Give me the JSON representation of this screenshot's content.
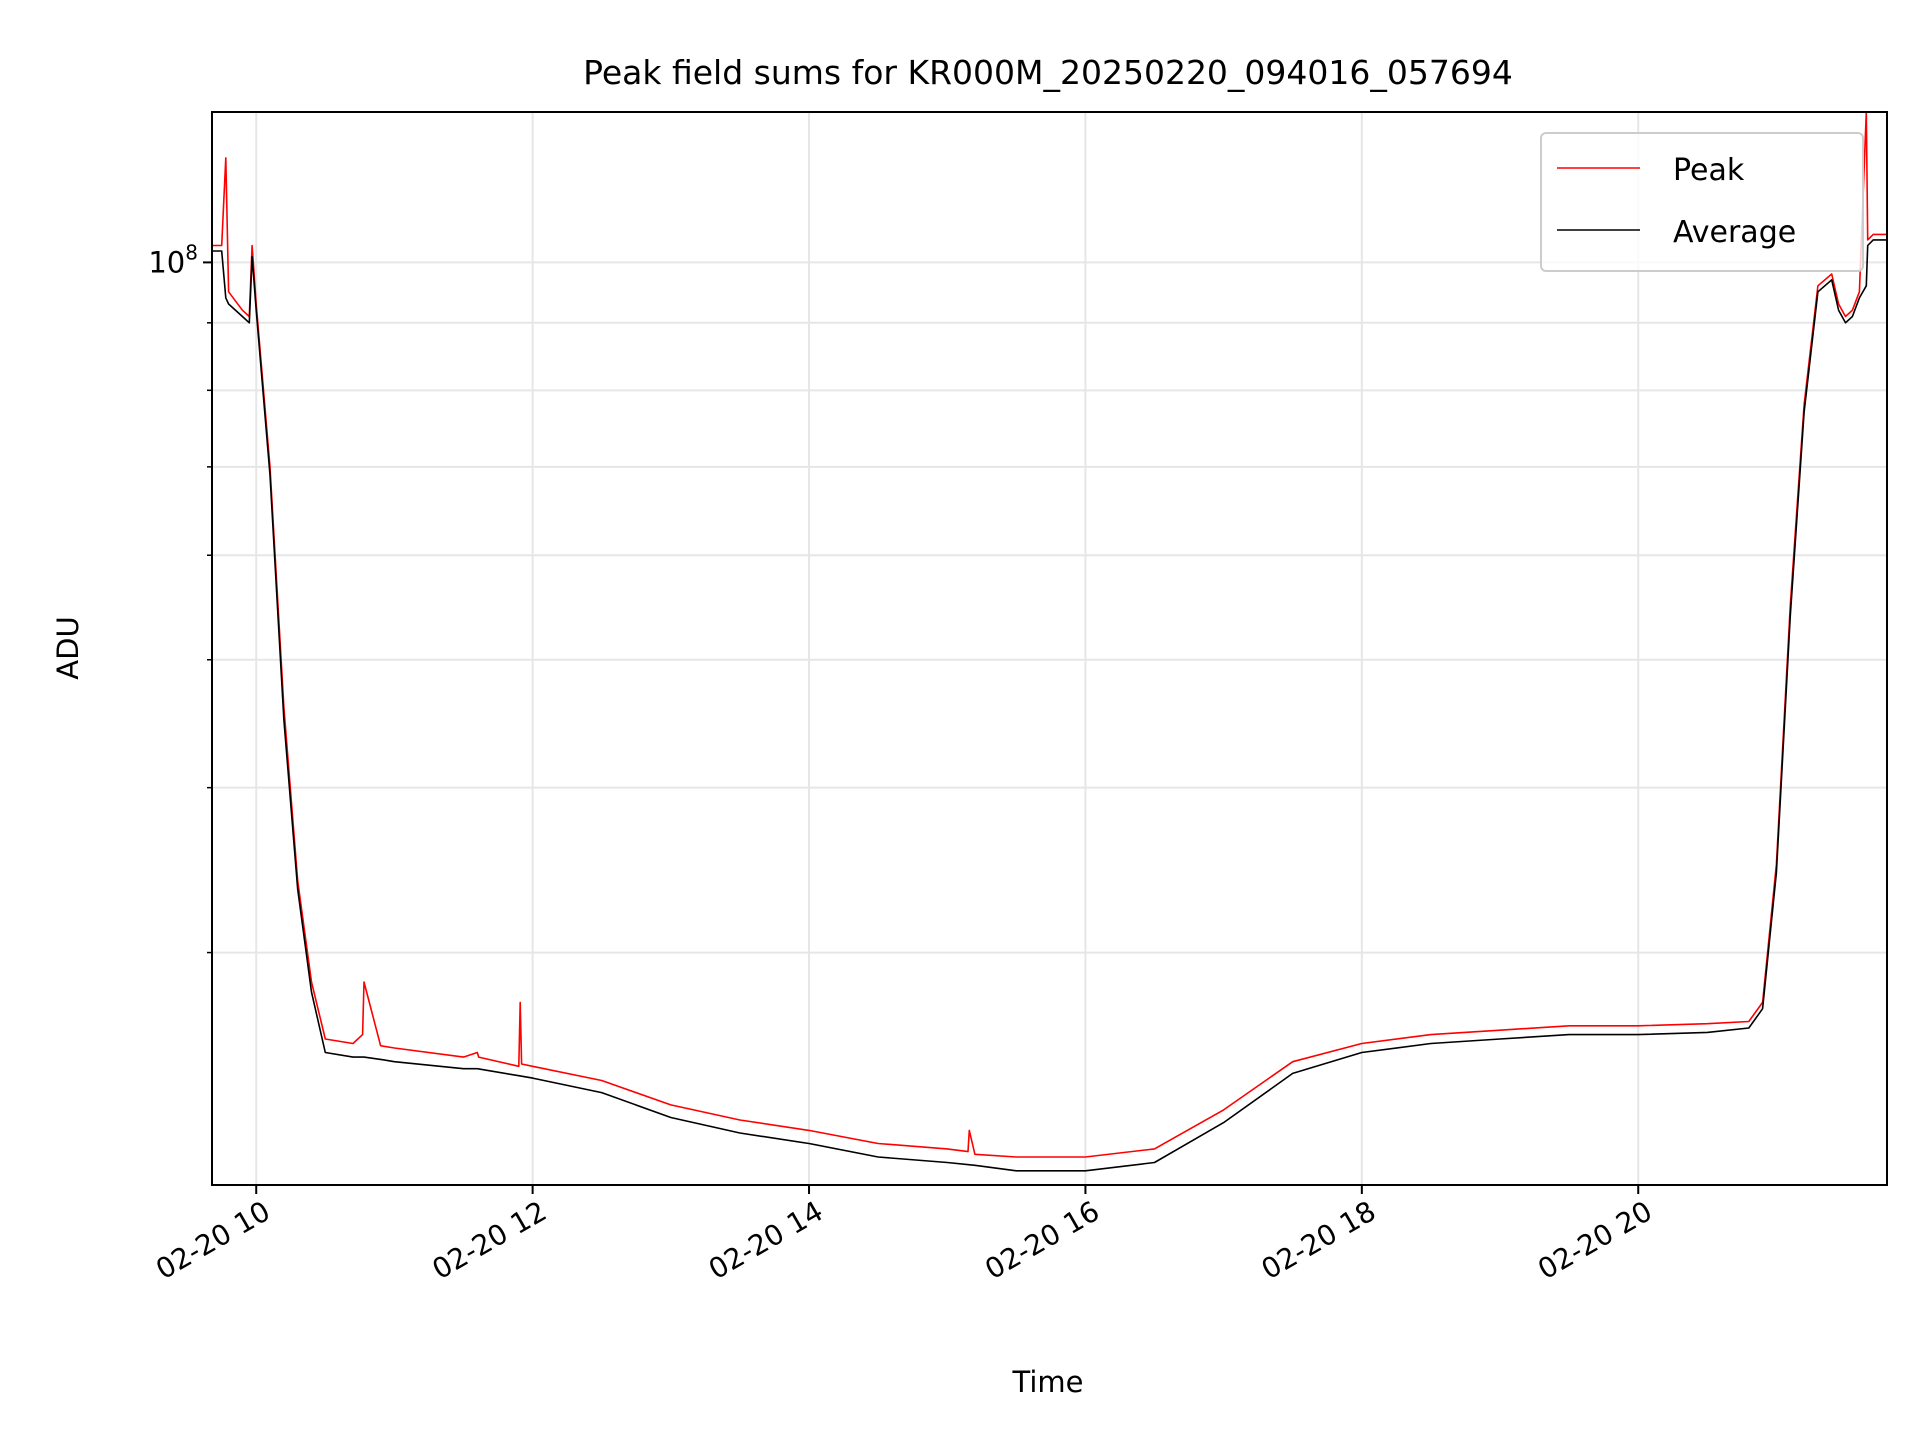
{
  "chart_data": {
    "type": "line",
    "title": "Peak field sums for KR000M_20250220_094016_057694",
    "xlabel": "Time",
    "ylabel": "ADU",
    "x_unit": "hours on 2025-02-20",
    "x_range": [
      9.68,
      21.8
    ],
    "y_scale": "log",
    "y_range": [
      20000000,
      130000000
    ],
    "x_ticks": [
      {
        "value": 10,
        "label": "02-20 10"
      },
      {
        "value": 12,
        "label": "02-20 12"
      },
      {
        "value": 14,
        "label": "02-20 14"
      },
      {
        "value": 16,
        "label": "02-20 16"
      },
      {
        "value": 18,
        "label": "02-20 18"
      },
      {
        "value": 20,
        "label": "02-20 20"
      }
    ],
    "y_major_ticks": [
      {
        "value": 100000000,
        "base": "10",
        "exp": "8"
      }
    ],
    "y_minor_ticks": [
      30000000,
      40000000,
      50000000,
      60000000,
      70000000,
      80000000,
      90000000
    ],
    "grid": true,
    "legend_position": "upper right",
    "series": [
      {
        "name": "Peak",
        "color": "#ff0000",
        "x": [
          9.68,
          9.75,
          9.78,
          9.8,
          9.9,
          9.95,
          9.97,
          10.0,
          10.1,
          10.2,
          10.3,
          10.4,
          10.5,
          10.7,
          10.77,
          10.78,
          10.9,
          11.0,
          11.5,
          11.6,
          11.61,
          11.9,
          11.91,
          11.92,
          12.0,
          12.5,
          13.0,
          13.5,
          14.0,
          14.5,
          15.0,
          15.15,
          15.16,
          15.2,
          15.5,
          16.0,
          16.5,
          17.0,
          17.5,
          18.0,
          18.5,
          19.0,
          19.5,
          20.0,
          20.5,
          20.8,
          20.9,
          21.0,
          21.1,
          21.2,
          21.3,
          21.4,
          21.45,
          21.5,
          21.55,
          21.6,
          21.65,
          21.66,
          21.7,
          21.8
        ],
        "y": [
          103000000,
          103000000,
          120000000,
          95000000,
          92000000,
          91000000,
          103000000,
          93000000,
          70000000,
          46000000,
          34000000,
          28500000,
          25800000,
          25600000,
          26000000,
          28500000,
          25500000,
          25400000,
          25000000,
          25200000,
          25000000,
          24600000,
          27500000,
          24700000,
          24600000,
          24000000,
          23000000,
          22400000,
          22000000,
          21500000,
          21300000,
          21200000,
          22000000,
          21100000,
          21000000,
          21000000,
          21300000,
          22800000,
          24800000,
          25600000,
          26000000,
          26200000,
          26400000,
          26400000,
          26500000,
          26600000,
          27500000,
          35000000,
          55000000,
          78000000,
          96000000,
          98000000,
          93000000,
          91000000,
          92000000,
          95000000,
          130000000,
          104000000,
          105000000,
          105000000
        ]
      },
      {
        "name": "Average",
        "color": "#000000",
        "x": [
          9.68,
          9.75,
          9.78,
          9.8,
          9.9,
          9.95,
          9.97,
          10.0,
          10.1,
          10.2,
          10.3,
          10.4,
          10.5,
          10.7,
          10.78,
          10.9,
          11.0,
          11.5,
          11.6,
          11.9,
          12.0,
          12.5,
          13.0,
          13.5,
          14.0,
          14.5,
          15.0,
          15.2,
          15.5,
          16.0,
          16.5,
          17.0,
          17.5,
          18.0,
          18.5,
          19.0,
          19.5,
          20.0,
          20.5,
          20.8,
          20.9,
          21.0,
          21.1,
          21.2,
          21.3,
          21.4,
          21.45,
          21.5,
          21.55,
          21.6,
          21.65,
          21.66,
          21.7,
          21.8
        ],
        "y": [
          102000000,
          102000000,
          94000000,
          93000000,
          91000000,
          90000000,
          101000000,
          92000000,
          69000000,
          45000000,
          33500000,
          28000000,
          25200000,
          25000000,
          25000000,
          24900000,
          24800000,
          24500000,
          24500000,
          24200000,
          24100000,
          23500000,
          22500000,
          21900000,
          21500000,
          21000000,
          20800000,
          20700000,
          20500000,
          20500000,
          20800000,
          22300000,
          24300000,
          25200000,
          25600000,
          25800000,
          26000000,
          26000000,
          26100000,
          26300000,
          27200000,
          34500000,
          54000000,
          77000000,
          95000000,
          97000000,
          92000000,
          90000000,
          91000000,
          94000000,
          96000000,
          103000000,
          104000000,
          104000000
        ]
      }
    ]
  }
}
